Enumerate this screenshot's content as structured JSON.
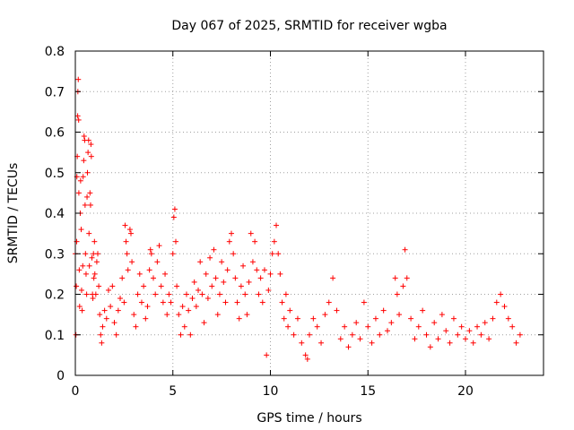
{
  "chart_data": {
    "type": "scatter",
    "title": "Day 067 of 2025, SRMTID for receiver wgba",
    "xlabel": "GPS time / hours",
    "ylabel": "SRMTID / TECUs",
    "xlim": [
      0,
      24
    ],
    "ylim": [
      0,
      0.8
    ],
    "xticks": [
      0,
      5,
      10,
      15,
      20
    ],
    "xtick_labels": [
      "0",
      "5",
      "10",
      "15",
      "20"
    ],
    "yticks": [
      0,
      0.1,
      0.2,
      0.3,
      0.4,
      0.5,
      0.6,
      0.7,
      0.8
    ],
    "ytick_labels": [
      "0",
      "0.1",
      "0.2",
      "0.3",
      "0.4",
      "0.5",
      "0.6",
      "0.7",
      "0.8"
    ],
    "grid": true,
    "marker": "+",
    "marker_color": "#ff0000",
    "series": [
      {
        "name": "SRMTID",
        "points": [
          [
            0.0,
            0.3
          ],
          [
            0.03,
            0.1
          ],
          [
            0.05,
            0.22
          ],
          [
            0.07,
            0.33
          ],
          [
            0.08,
            0.49
          ],
          [
            0.1,
            0.54
          ],
          [
            0.12,
            0.64
          ],
          [
            0.13,
            0.7
          ],
          [
            0.15,
            0.73
          ],
          [
            0.17,
            0.63
          ],
          [
            0.18,
            0.45
          ],
          [
            0.2,
            0.26
          ],
          [
            0.22,
            0.17
          ],
          [
            0.25,
            0.4
          ],
          [
            0.27,
            0.48
          ],
          [
            0.3,
            0.36
          ],
          [
            0.32,
            0.21
          ],
          [
            0.35,
            0.16
          ],
          [
            0.38,
            0.27
          ],
          [
            0.4,
            0.49
          ],
          [
            0.43,
            0.53
          ],
          [
            0.45,
            0.59
          ],
          [
            0.48,
            0.58
          ],
          [
            0.5,
            0.42
          ],
          [
            0.52,
            0.3
          ],
          [
            0.55,
            0.25
          ],
          [
            0.58,
            0.2
          ],
          [
            0.6,
            0.44
          ],
          [
            0.62,
            0.5
          ],
          [
            0.65,
            0.55
          ],
          [
            0.68,
            0.58
          ],
          [
            0.7,
            0.35
          ],
          [
            0.72,
            0.27
          ],
          [
            0.75,
            0.45
          ],
          [
            0.78,
            0.42
          ],
          [
            0.8,
            0.57
          ],
          [
            0.82,
            0.54
          ],
          [
            0.85,
            0.29
          ],
          [
            0.88,
            0.2
          ],
          [
            0.9,
            0.19
          ],
          [
            0.93,
            0.3
          ],
          [
            0.95,
            0.24
          ],
          [
            0.98,
            0.33
          ],
          [
            1.0,
            0.25
          ],
          [
            1.05,
            0.2
          ],
          [
            1.1,
            0.28
          ],
          [
            1.15,
            0.3
          ],
          [
            1.2,
            0.22
          ],
          [
            1.25,
            0.15
          ],
          [
            1.3,
            0.1
          ],
          [
            1.35,
            0.08
          ],
          [
            1.4,
            0.12
          ],
          [
            1.5,
            0.16
          ],
          [
            1.6,
            0.14
          ],
          [
            1.7,
            0.21
          ],
          [
            1.8,
            0.17
          ],
          [
            1.9,
            0.22
          ],
          [
            2.0,
            0.13
          ],
          [
            2.1,
            0.1
          ],
          [
            2.2,
            0.16
          ],
          [
            2.3,
            0.19
          ],
          [
            2.4,
            0.24
          ],
          [
            2.5,
            0.18
          ],
          [
            2.55,
            0.37
          ],
          [
            2.6,
            0.33
          ],
          [
            2.65,
            0.3
          ],
          [
            2.7,
            0.26
          ],
          [
            2.8,
            0.36
          ],
          [
            2.85,
            0.35
          ],
          [
            2.9,
            0.28
          ],
          [
            3.0,
            0.15
          ],
          [
            3.1,
            0.12
          ],
          [
            3.2,
            0.2
          ],
          [
            3.3,
            0.25
          ],
          [
            3.4,
            0.18
          ],
          [
            3.5,
            0.22
          ],
          [
            3.6,
            0.14
          ],
          [
            3.7,
            0.17
          ],
          [
            3.8,
            0.26
          ],
          [
            3.85,
            0.31
          ],
          [
            3.9,
            0.3
          ],
          [
            4.0,
            0.24
          ],
          [
            4.1,
            0.2
          ],
          [
            4.2,
            0.28
          ],
          [
            4.3,
            0.32
          ],
          [
            4.4,
            0.22
          ],
          [
            4.5,
            0.18
          ],
          [
            4.6,
            0.25
          ],
          [
            4.7,
            0.15
          ],
          [
            4.8,
            0.2
          ],
          [
            4.9,
            0.18
          ],
          [
            5.0,
            0.3
          ],
          [
            5.05,
            0.39
          ],
          [
            5.1,
            0.41
          ],
          [
            5.15,
            0.33
          ],
          [
            5.2,
            0.22
          ],
          [
            5.3,
            0.15
          ],
          [
            5.4,
            0.1
          ],
          [
            5.5,
            0.17
          ],
          [
            5.6,
            0.12
          ],
          [
            5.7,
            0.2
          ],
          [
            5.8,
            0.16
          ],
          [
            5.9,
            0.1
          ],
          [
            6.0,
            0.19
          ],
          [
            6.1,
            0.23
          ],
          [
            6.2,
            0.17
          ],
          [
            6.3,
            0.21
          ],
          [
            6.4,
            0.28
          ],
          [
            6.5,
            0.2
          ],
          [
            6.6,
            0.13
          ],
          [
            6.7,
            0.25
          ],
          [
            6.8,
            0.19
          ],
          [
            6.9,
            0.29
          ],
          [
            7.0,
            0.22
          ],
          [
            7.1,
            0.31
          ],
          [
            7.2,
            0.24
          ],
          [
            7.3,
            0.15
          ],
          [
            7.4,
            0.2
          ],
          [
            7.5,
            0.28
          ],
          [
            7.6,
            0.23
          ],
          [
            7.7,
            0.18
          ],
          [
            7.8,
            0.26
          ],
          [
            7.9,
            0.33
          ],
          [
            8.0,
            0.35
          ],
          [
            8.1,
            0.3
          ],
          [
            8.2,
            0.24
          ],
          [
            8.3,
            0.18
          ],
          [
            8.4,
            0.14
          ],
          [
            8.5,
            0.22
          ],
          [
            8.6,
            0.27
          ],
          [
            8.7,
            0.2
          ],
          [
            8.8,
            0.15
          ],
          [
            8.9,
            0.23
          ],
          [
            9.0,
            0.35
          ],
          [
            9.1,
            0.28
          ],
          [
            9.2,
            0.33
          ],
          [
            9.3,
            0.26
          ],
          [
            9.4,
            0.2
          ],
          [
            9.5,
            0.24
          ],
          [
            9.6,
            0.18
          ],
          [
            9.7,
            0.26
          ],
          [
            9.8,
            0.05
          ],
          [
            9.9,
            0.21
          ],
          [
            10.0,
            0.25
          ],
          [
            10.1,
            0.3
          ],
          [
            10.2,
            0.33
          ],
          [
            10.3,
            0.37
          ],
          [
            10.4,
            0.3
          ],
          [
            10.5,
            0.25
          ],
          [
            10.6,
            0.18
          ],
          [
            10.7,
            0.14
          ],
          [
            10.8,
            0.2
          ],
          [
            10.9,
            0.12
          ],
          [
            11.0,
            0.16
          ],
          [
            11.2,
            0.1
          ],
          [
            11.4,
            0.14
          ],
          [
            11.6,
            0.08
          ],
          [
            11.8,
            0.05
          ],
          [
            11.9,
            0.04
          ],
          [
            12.0,
            0.1
          ],
          [
            12.2,
            0.14
          ],
          [
            12.4,
            0.12
          ],
          [
            12.6,
            0.08
          ],
          [
            12.8,
            0.15
          ],
          [
            13.0,
            0.18
          ],
          [
            13.2,
            0.24
          ],
          [
            13.4,
            0.16
          ],
          [
            13.6,
            0.09
          ],
          [
            13.8,
            0.12
          ],
          [
            14.0,
            0.07
          ],
          [
            14.2,
            0.1
          ],
          [
            14.4,
            0.13
          ],
          [
            14.6,
            0.09
          ],
          [
            14.8,
            0.18
          ],
          [
            15.0,
            0.12
          ],
          [
            15.2,
            0.08
          ],
          [
            15.4,
            0.14
          ],
          [
            15.6,
            0.1
          ],
          [
            15.8,
            0.16
          ],
          [
            16.0,
            0.11
          ],
          [
            16.2,
            0.13
          ],
          [
            16.4,
            0.24
          ],
          [
            16.5,
            0.2
          ],
          [
            16.6,
            0.15
          ],
          [
            16.8,
            0.22
          ],
          [
            16.9,
            0.31
          ],
          [
            17.0,
            0.24
          ],
          [
            17.2,
            0.14
          ],
          [
            17.4,
            0.09
          ],
          [
            17.6,
            0.12
          ],
          [
            17.8,
            0.16
          ],
          [
            18.0,
            0.1
          ],
          [
            18.2,
            0.07
          ],
          [
            18.4,
            0.13
          ],
          [
            18.6,
            0.09
          ],
          [
            18.8,
            0.15
          ],
          [
            19.0,
            0.11
          ],
          [
            19.2,
            0.08
          ],
          [
            19.4,
            0.14
          ],
          [
            19.6,
            0.1
          ],
          [
            19.8,
            0.12
          ],
          [
            20.0,
            0.09
          ],
          [
            20.2,
            0.11
          ],
          [
            20.4,
            0.08
          ],
          [
            20.6,
            0.12
          ],
          [
            20.8,
            0.1
          ],
          [
            21.0,
            0.13
          ],
          [
            21.2,
            0.09
          ],
          [
            21.4,
            0.14
          ],
          [
            21.6,
            0.18
          ],
          [
            21.8,
            0.2
          ],
          [
            22.0,
            0.17
          ],
          [
            22.2,
            0.14
          ],
          [
            22.4,
            0.12
          ],
          [
            22.6,
            0.08
          ],
          [
            22.8,
            0.1
          ]
        ]
      }
    ]
  }
}
